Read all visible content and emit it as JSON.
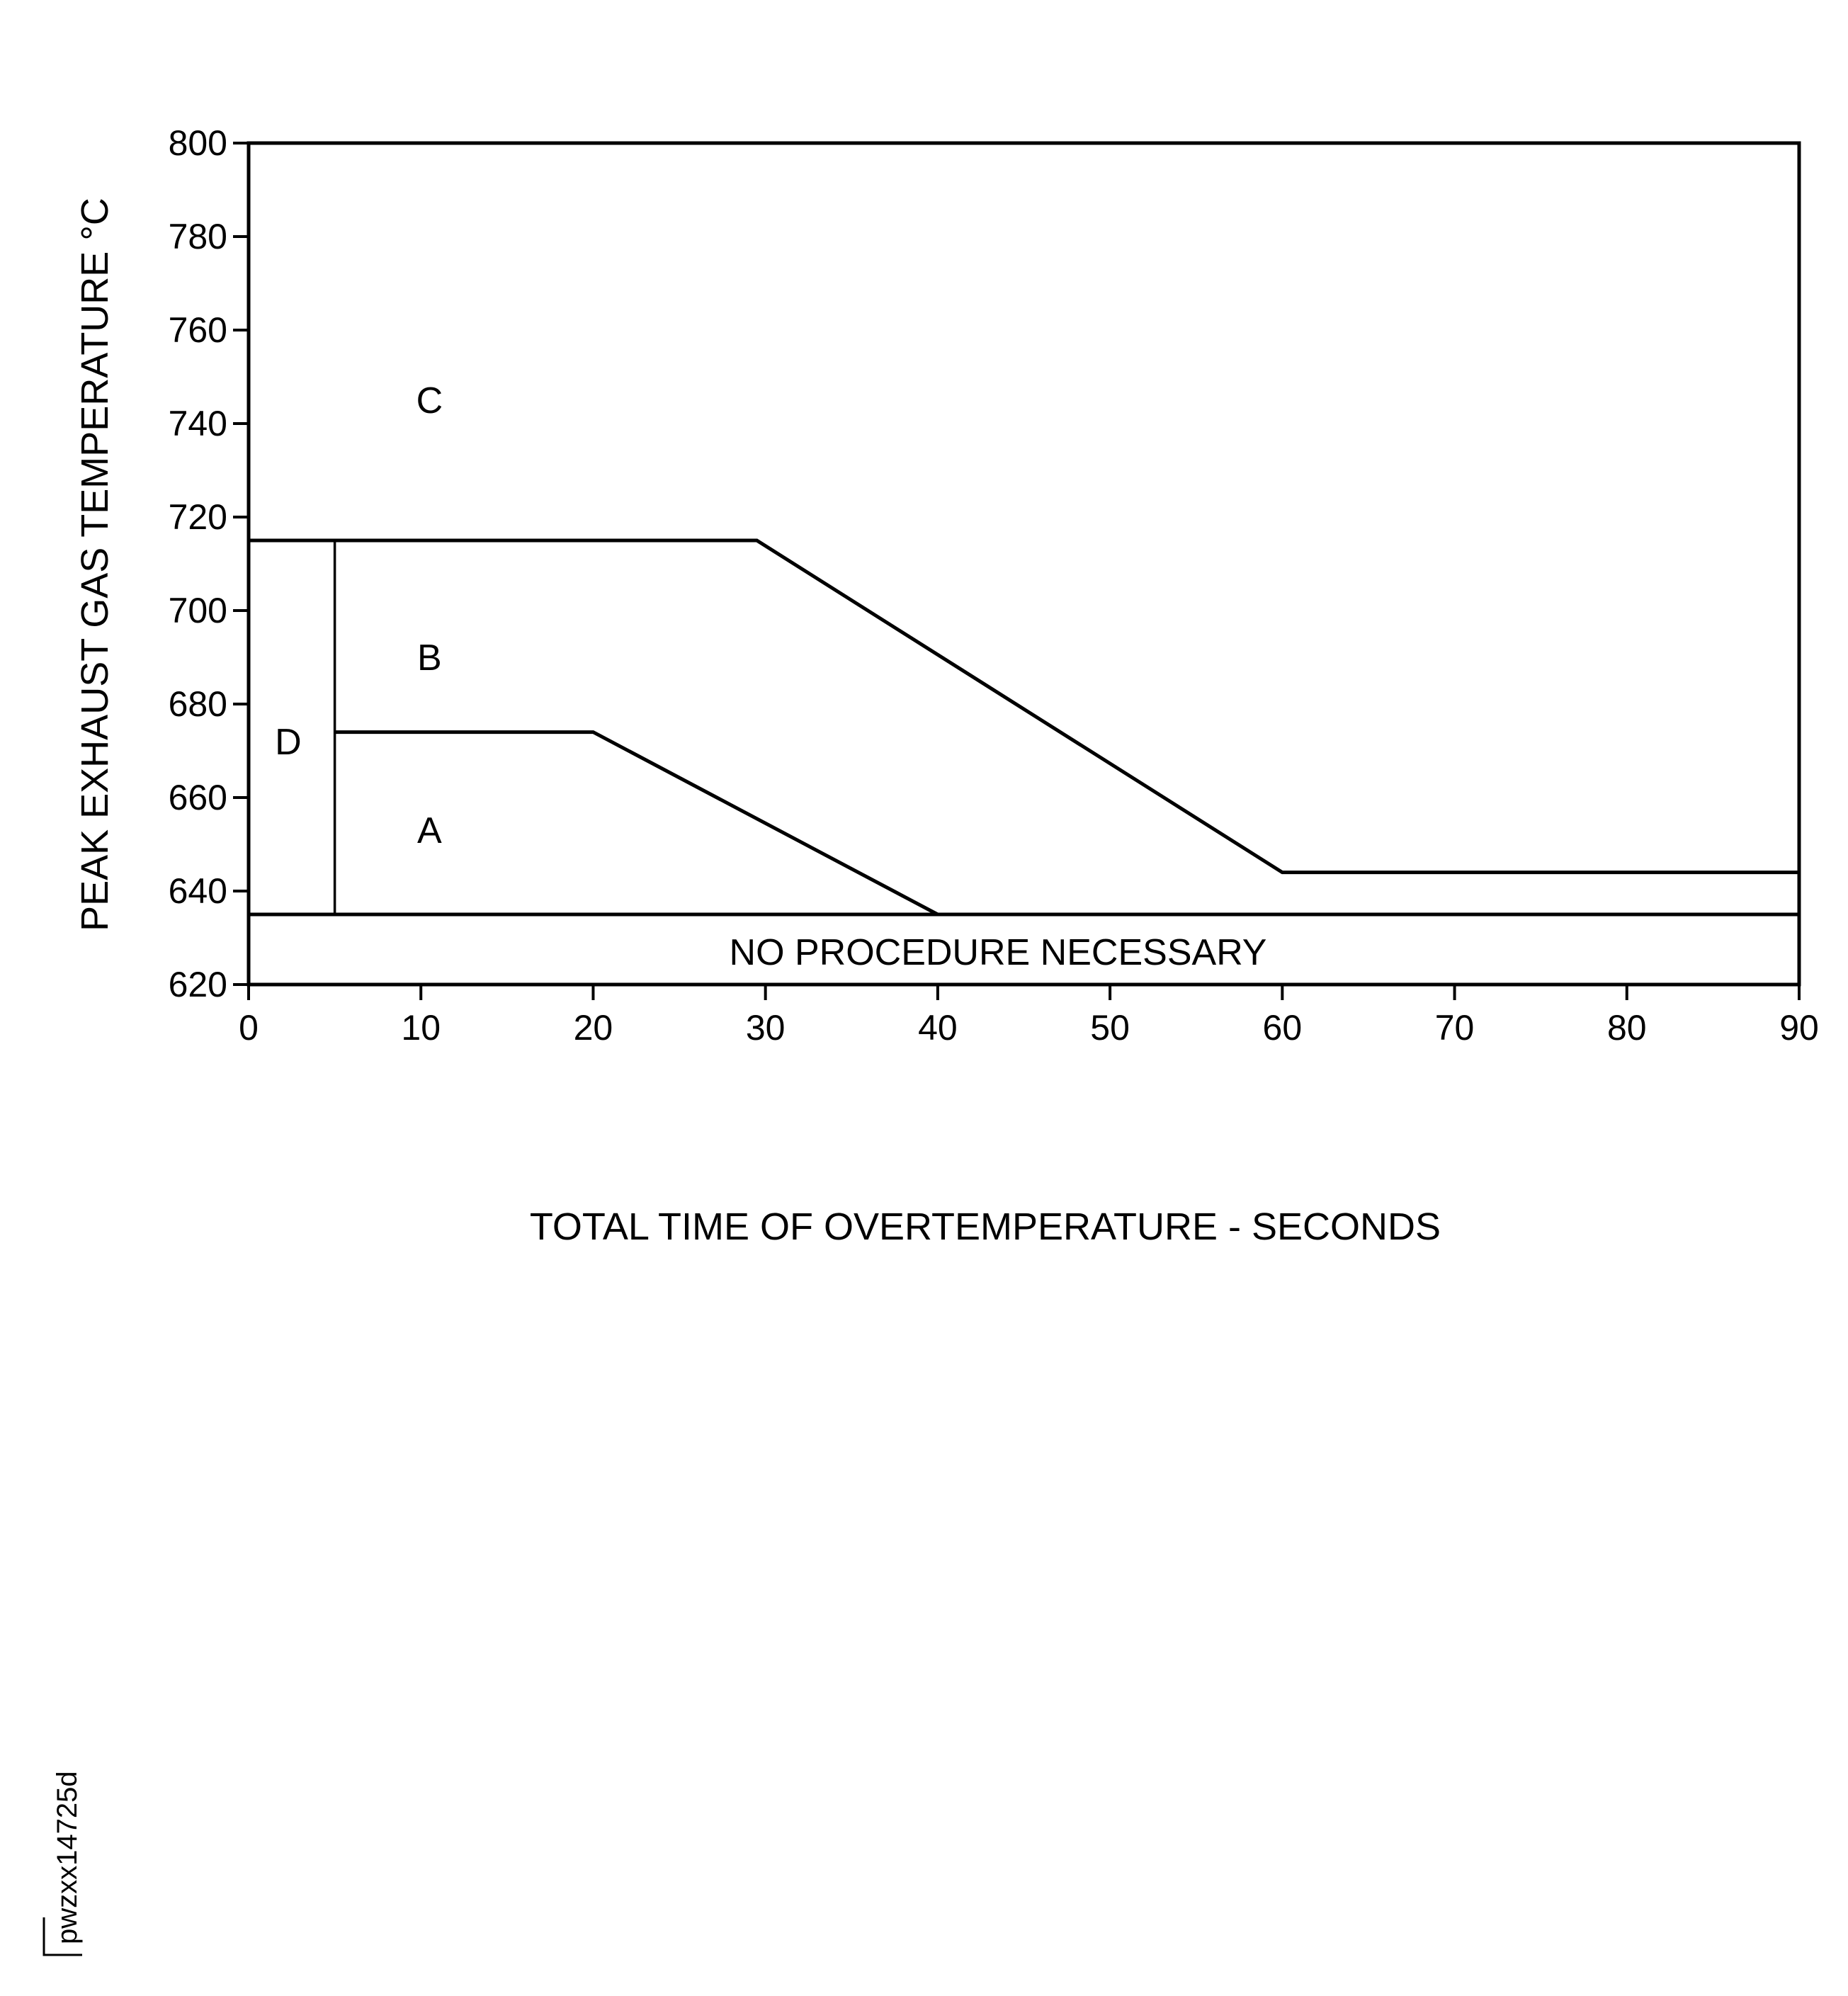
{
  "chart_data": {
    "type": "line",
    "title": "",
    "xlabel": "TOTAL TIME OF OVERTEMPERATURE - SECONDS",
    "ylabel": "PEAK EXHAUST GAS TEMPERATURE °C",
    "xlim": [
      0,
      90
    ],
    "ylim": [
      620,
      800
    ],
    "x_ticks": [
      0,
      10,
      20,
      30,
      40,
      50,
      60,
      70,
      80,
      90
    ],
    "y_ticks": [
      620,
      640,
      660,
      680,
      700,
      720,
      740,
      760,
      780,
      800
    ],
    "grid": false,
    "legend": "none",
    "boundaries": [
      {
        "points": [
          [
            0,
            715
          ],
          [
            29.5,
            715
          ],
          [
            60,
            644
          ],
          [
            90,
            644
          ]
        ]
      },
      {
        "points": [
          [
            5,
            674
          ],
          [
            20,
            674
          ],
          [
            40,
            635
          ]
        ]
      },
      {
        "points": [
          [
            0,
            635
          ],
          [
            90,
            635
          ]
        ]
      },
      {
        "points": [
          [
            5,
            635
          ],
          [
            5,
            715
          ]
        ]
      }
    ],
    "regions": [
      {
        "label": "C",
        "x": 10.5,
        "y": 745
      },
      {
        "label": "B",
        "x": 10.5,
        "y": 690
      },
      {
        "label": "A",
        "x": 10.5,
        "y": 653
      },
      {
        "label": "D",
        "x": 2.3,
        "y": 672
      },
      {
        "label": "NO PROCEDURE NECESSARY",
        "x": 43.5,
        "y": 627
      }
    ],
    "line_color": "#000000"
  },
  "figure_id": "pwzxx14725d"
}
